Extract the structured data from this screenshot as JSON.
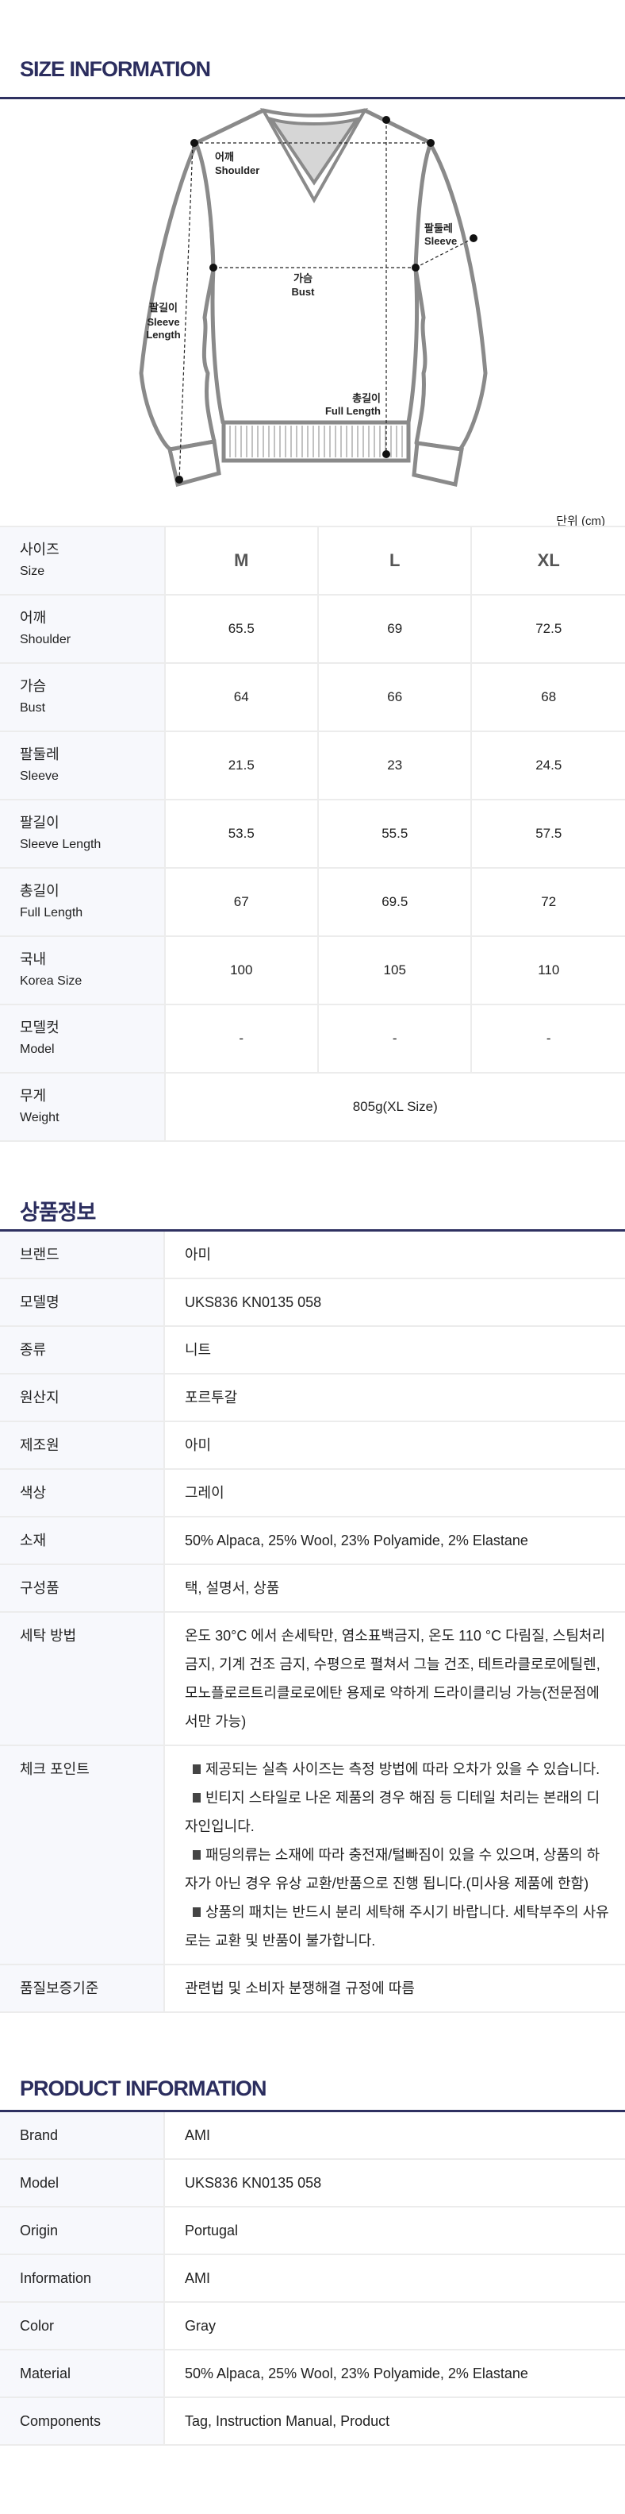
{
  "size_section": {
    "title": "SIZE INFORMATION",
    "diagram_labels": {
      "shoulder_kr": "어깨",
      "shoulder_en": "Shoulder",
      "sleeve_kr": "팔둘레",
      "sleeve_en": "Sleeve",
      "bust_kr": "가슴",
      "bust_en": "Bust",
      "sleeve_length_kr": "팔길이",
      "sleeve_length_en1": "Sleeve",
      "sleeve_length_en2": "Length",
      "full_length_kr": "총길이",
      "full_length_en": "Full Length"
    },
    "unit": "단위 (cm)",
    "header": {
      "kr": "사이즈",
      "en": "Size",
      "sizes": [
        "M",
        "L",
        "XL"
      ]
    },
    "rows": [
      {
        "kr": "어깨",
        "en": "Shoulder",
        "values": [
          "65.5",
          "69",
          "72.5"
        ]
      },
      {
        "kr": "가슴",
        "en": "Bust",
        "values": [
          "64",
          "66",
          "68"
        ]
      },
      {
        "kr": "팔둘레",
        "en": "Sleeve",
        "values": [
          "21.5",
          "23",
          "24.5"
        ]
      },
      {
        "kr": "팔길이",
        "en": "Sleeve Length",
        "values": [
          "53.5",
          "55.5",
          "57.5"
        ]
      },
      {
        "kr": "총길이",
        "en": "Full Length",
        "values": [
          "67",
          "69.5",
          "72"
        ]
      },
      {
        "kr": "국내",
        "en": "Korea Size",
        "values": [
          "100",
          "105",
          "110"
        ]
      },
      {
        "kr": "모델컷",
        "en": "Model",
        "values": [
          "-",
          "-",
          "-"
        ]
      }
    ],
    "weight": {
      "kr": "무게",
      "en": "Weight",
      "value": "805g(XL Size)"
    }
  },
  "kr_section": {
    "title": "상품정보",
    "rows": [
      {
        "label": "브랜드",
        "value": "아미"
      },
      {
        "label": "모델명",
        "value": "UKS836 KN0135 058"
      },
      {
        "label": "종류",
        "value": "니트"
      },
      {
        "label": "원산지",
        "value": "포르투갈"
      },
      {
        "label": "제조원",
        "value": "아미"
      },
      {
        "label": "색상",
        "value": "그레이"
      },
      {
        "label": "소재",
        "value": "50% Alpaca, 25% Wool, 23% Polyamide, 2% Elastane"
      },
      {
        "label": "구성품",
        "value": "택, 설명서, 상품"
      },
      {
        "label": "세탁 방법",
        "value": "온도 30°C 에서 손세탁만, 염소표백금지, 온도 110 °C 다림질, 스팀처리 금지, 기계 건조 금지, 수평으로 펼쳐서 그늘 건조, 테트라클로로에틸렌, 모노플로르트리클로로에탄 용제로 약하게 드라이클리닝 가능(전문점에서만 가능)"
      }
    ],
    "check_point": {
      "label": "체크 포인트",
      "items": [
        "제공되는 실측 사이즈는 측정 방법에 따라 오차가 있을 수 있습니다.",
        "빈티지 스타일로 나온 제품의 경우 해짐 등 디테일 처리는 본래의 디자인입니다.",
        "패딩의류는 소재에 따라 충전재/털빠짐이 있을 수 있으며, 상품의 하자가 아닌 경우 유상 교환/반품으로 진행 됩니다.(미사용 제품에 한함)",
        "상품의 패치는 반드시 분리 세탁해 주시기 바랍니다. 세탁부주의 사유로는 교환 및 반품이 불가합니다."
      ]
    },
    "quality": {
      "label": "품질보증기준",
      "value": "관련법 및 소비자 분쟁해결 규정에 따름"
    }
  },
  "en_section": {
    "title": "PRODUCT INFORMATION",
    "rows": [
      {
        "label": "Brand",
        "value": "AMI"
      },
      {
        "label": "Model",
        "value": "UKS836 KN0135 058"
      },
      {
        "label": "Origin",
        "value": "Portugal"
      },
      {
        "label": "Information",
        "value": "AMI"
      },
      {
        "label": "Color",
        "value": "Gray"
      },
      {
        "label": "Material",
        "value": "50% Alpaca, 25% Wool, 23% Polyamide, 2% Elastane"
      },
      {
        "label": "Components",
        "value": "Tag, Instruction Manual, Product"
      }
    ]
  },
  "colors": {
    "title": "#2b2d5e",
    "label_bg": "#f7f8fc",
    "border": "#ececec",
    "outline": "#8a8a8a"
  }
}
